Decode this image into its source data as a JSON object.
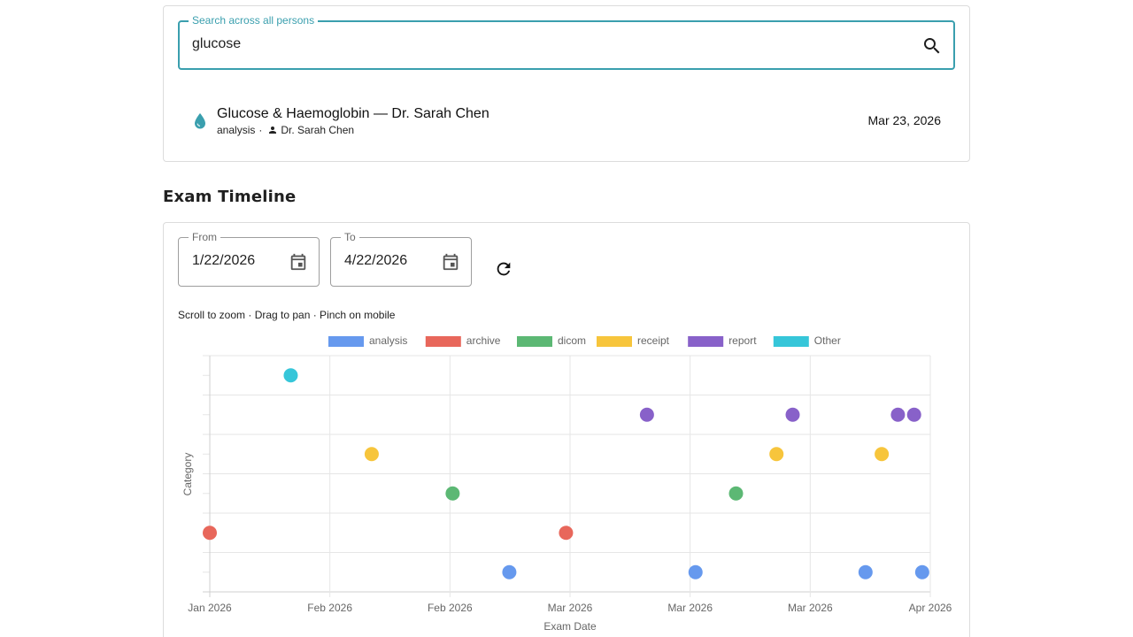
{
  "search": {
    "label": "Search across all persons",
    "value": "glucose",
    "icon": "search-icon"
  },
  "result": {
    "title": "Glucose & Haemoglobin — Dr. Sarah Chen",
    "category": "analysis",
    "separator": "·",
    "person": "Dr. Sarah Chen",
    "date": "Mar 23, 2026",
    "icon": "water-drop-icon",
    "icon_color": "#3a9fae"
  },
  "timeline": {
    "title": "Exam Timeline",
    "from_label": "From",
    "from_value": "1/22/2026",
    "to_label": "To",
    "to_value": "4/22/2026",
    "hint": "Scroll to zoom · Drag to pan · Pinch on mobile"
  },
  "colors": {
    "accent": "#3a9fae"
  },
  "chart_data": {
    "type": "scatter",
    "xlabel": "Exam Date",
    "ylabel": "Category",
    "x_ticks": [
      "Jan 2026",
      "Feb 2026",
      "Feb 2026",
      "Mar 2026",
      "Mar 2026",
      "Mar 2026",
      "Apr 2026"
    ],
    "xlim": [
      "2026-01-01",
      "2026-03-31"
    ],
    "legend_position": "top-center",
    "grid": true,
    "categories": [
      "analysis",
      "archive",
      "dicom",
      "receipt",
      "report",
      "Other"
    ],
    "series": [
      {
        "name": "analysis",
        "color": "#6699ee",
        "points": [
          "2026-02-07",
          "2026-03-02",
          "2026-03-23",
          "2026-03-30"
        ]
      },
      {
        "name": "archive",
        "color": "#e8675b",
        "points": [
          "2026-01-01",
          "2026-02-14"
        ]
      },
      {
        "name": "dicom",
        "color": "#5cb874",
        "points": [
          "2026-01-31",
          "2026-03-07"
        ]
      },
      {
        "name": "receipt",
        "color": "#f7c53c",
        "points": [
          "2026-01-21",
          "2026-03-12",
          "2026-03-25"
        ]
      },
      {
        "name": "report",
        "color": "#8861c9",
        "points": [
          "2026-02-24",
          "2026-03-14",
          "2026-03-27",
          "2026-03-29"
        ]
      },
      {
        "name": "Other",
        "color": "#36c6d9",
        "points": [
          "2026-01-11"
        ]
      }
    ]
  }
}
